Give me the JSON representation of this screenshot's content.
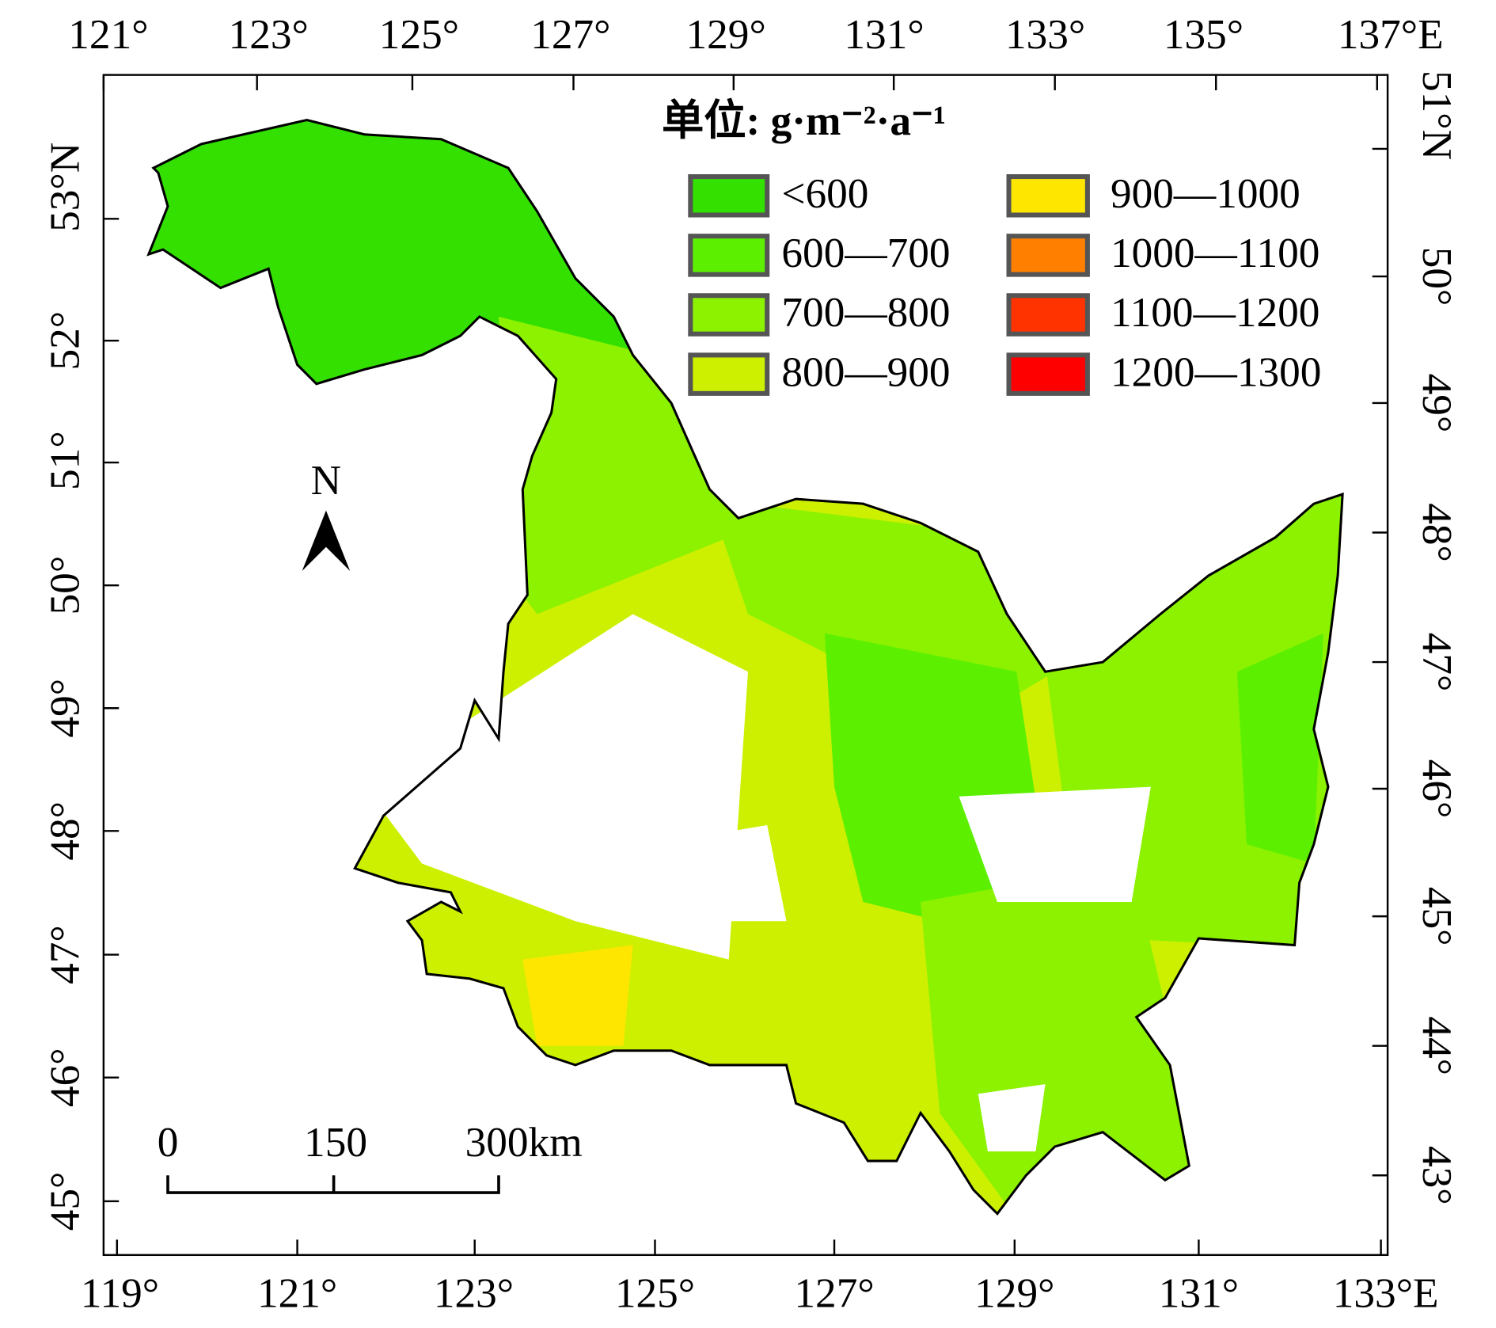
{
  "map": {
    "axes": {
      "top": [
        "121°",
        "123°",
        "125°",
        "127°",
        "129°",
        "131°",
        "133°",
        "135°",
        "137°E"
      ],
      "bottom": [
        "119°",
        "121°",
        "123°",
        "125°",
        "127°",
        "129°",
        "131°",
        "133°E"
      ],
      "left": [
        "53°N",
        "52°",
        "51°",
        "50°",
        "49°",
        "48°",
        "47°",
        "46°",
        "45°"
      ],
      "right": [
        "51°N",
        "50°",
        "49°",
        "48°",
        "47°",
        "46°",
        "45°",
        "44°",
        "43°"
      ]
    },
    "legend": {
      "title": "单位: g·m⁻²·a⁻¹",
      "items": [
        {
          "label": "<600",
          "color": "#33e000"
        },
        {
          "label": "600—700",
          "color": "#5cf000"
        },
        {
          "label": "700—800",
          "color": "#8cf200"
        },
        {
          "label": "800—900",
          "color": "#ccf000"
        },
        {
          "label": "900—1000",
          "color": "#ffe600"
        },
        {
          "label": "1000—1100",
          "color": "#ff8000"
        },
        {
          "label": "1100—1200",
          "color": "#ff3300"
        },
        {
          "label": "1200—1300",
          "color": "#ff0000"
        }
      ]
    },
    "north": "N",
    "scale_bar": [
      "0",
      "150",
      "300km"
    ]
  }
}
